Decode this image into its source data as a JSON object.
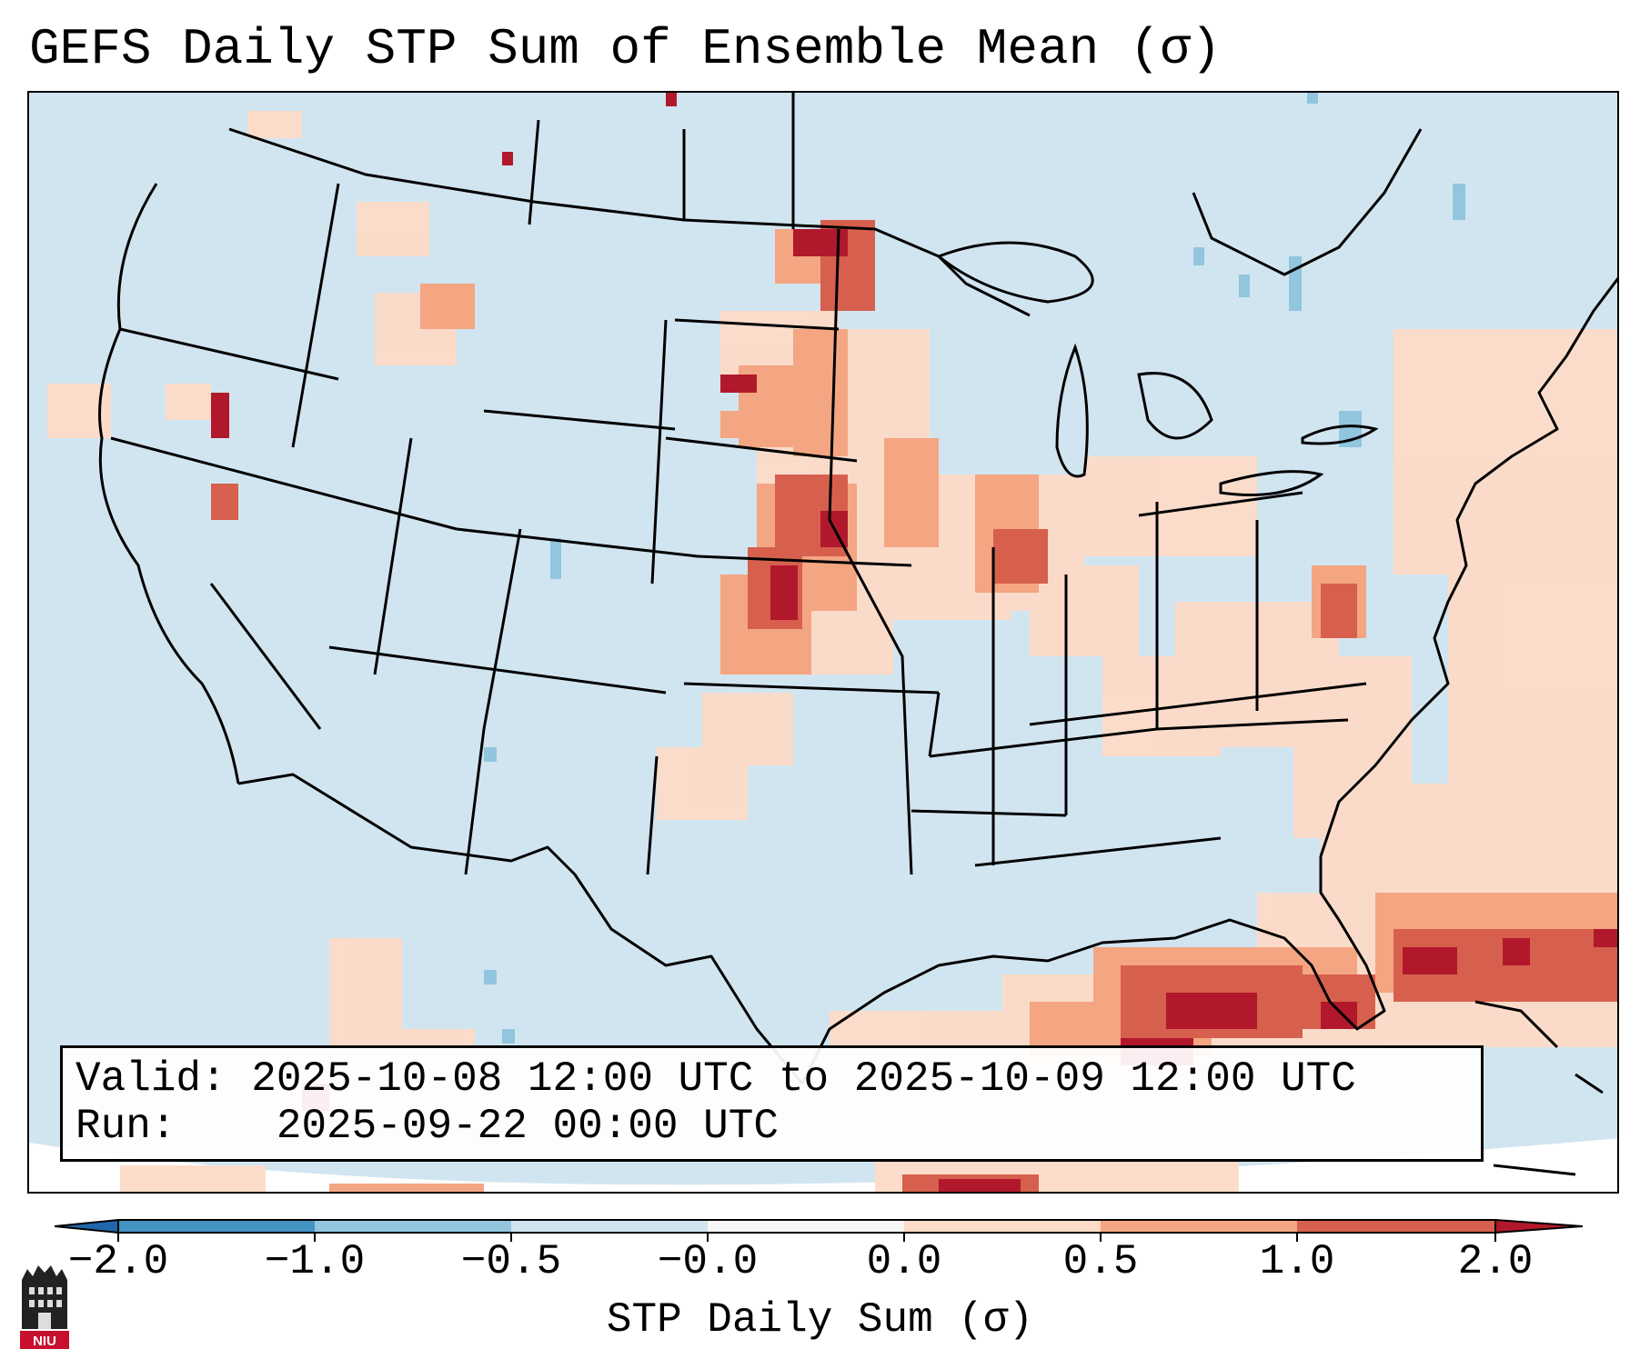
{
  "title": "GEFS Daily STP Sum of Ensemble Mean (σ)",
  "map": {
    "region": "Continental United States",
    "background_color": "#d1e5f0",
    "field": "STP Daily Sum anomaly (σ)",
    "notable_regions": [
      "Central Plains (Kansas/Nebraska/Dakotas) red maxima",
      "Gulf of Mexico / Florida Straits red band",
      "Western Atlantic off Southeast coast",
      "Ohio Valley / Midwest light red"
    ]
  },
  "infobox": {
    "valid_label": "Valid:",
    "valid_value": "2025-10-08 12:00 UTC to 2025-10-09 12:00 UTC",
    "run_label": "Run:",
    "run_value": "2025-09-22 00:00 UTC"
  },
  "colorbar": {
    "label": "STP Daily Sum (σ)",
    "ticks": [
      "−2.0",
      "−1.0",
      "−0.5",
      "−0.0",
      "0.0",
      "0.5",
      "1.0",
      "2.0"
    ],
    "colors": [
      "#2166ac",
      "#4393c3",
      "#92c5de",
      "#d1e5f0",
      "#f7f7f7",
      "#fddbc7",
      "#f4a582",
      "#d6604d",
      "#b2182b"
    ],
    "extend": "both"
  },
  "logo": {
    "text": "NIU",
    "color": "#c8102e"
  }
}
